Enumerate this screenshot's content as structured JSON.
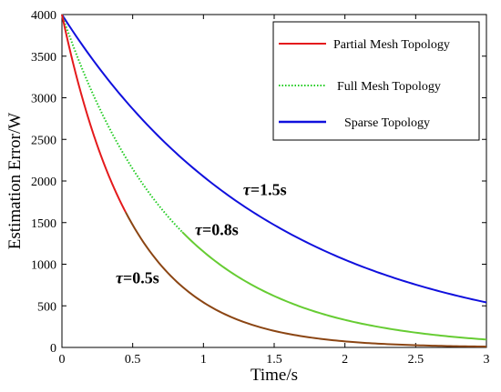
{
  "chart_data": {
    "type": "line",
    "title": "",
    "xlabel": "Time/s",
    "ylabel": "Estimation Error/W",
    "xlim": [
      0,
      3
    ],
    "ylim": [
      0,
      4000
    ],
    "xticks": [
      0,
      0.5,
      1,
      1.5,
      2,
      2.5,
      3
    ],
    "xtick_labels": [
      "0",
      "0.5",
      "1",
      "1.5",
      "2",
      "2.5",
      "3"
    ],
    "yticks": [
      0,
      500,
      1000,
      1500,
      2000,
      2500,
      3000,
      3500,
      4000
    ],
    "ytick_labels": [
      "0",
      "500",
      "1000",
      "1500",
      "2000",
      "2500",
      "3000",
      "3500",
      "4000"
    ],
    "grid": false,
    "legend_position": "top-right",
    "x": [
      0,
      0.25,
      0.5,
      0.75,
      1,
      1.25,
      1.5,
      1.75,
      2,
      2.25,
      2.5,
      2.75,
      3
    ],
    "series": [
      {
        "name": "Partial Mesh Topology",
        "color": "#e41a1c",
        "color_tail": "#8b4513",
        "style": "solid",
        "values": [
          4000,
          2426,
          1472,
          893,
          541,
          328,
          199,
          121,
          73,
          44,
          27,
          16,
          10
        ]
      },
      {
        "name": "Full Mesh Topology",
        "color": "#22cc22",
        "color_tail": "#66cc33",
        "style": "dotted",
        "values": [
          4000,
          2930,
          2146,
          1572,
          1151,
          843,
          618,
          452,
          331,
          243,
          178,
          130,
          95
        ]
      },
      {
        "name": "Sparse Topology",
        "color": "#1010dd",
        "style": "solid",
        "values": [
          4000,
          3385,
          2866,
          2426,
          2054,
          1738,
          1472,
          1246,
          1054,
          892,
          755,
          639,
          541
        ]
      }
    ],
    "annotations": [
      {
        "tau": "τ",
        "text": "=1.5s",
        "x": 1.28,
        "y": 1830
      },
      {
        "tau": "τ",
        "text": "=0.8s",
        "x": 0.94,
        "y": 1350
      },
      {
        "tau": "τ",
        "text": "=0.5s",
        "x": 0.38,
        "y": 770
      }
    ]
  }
}
